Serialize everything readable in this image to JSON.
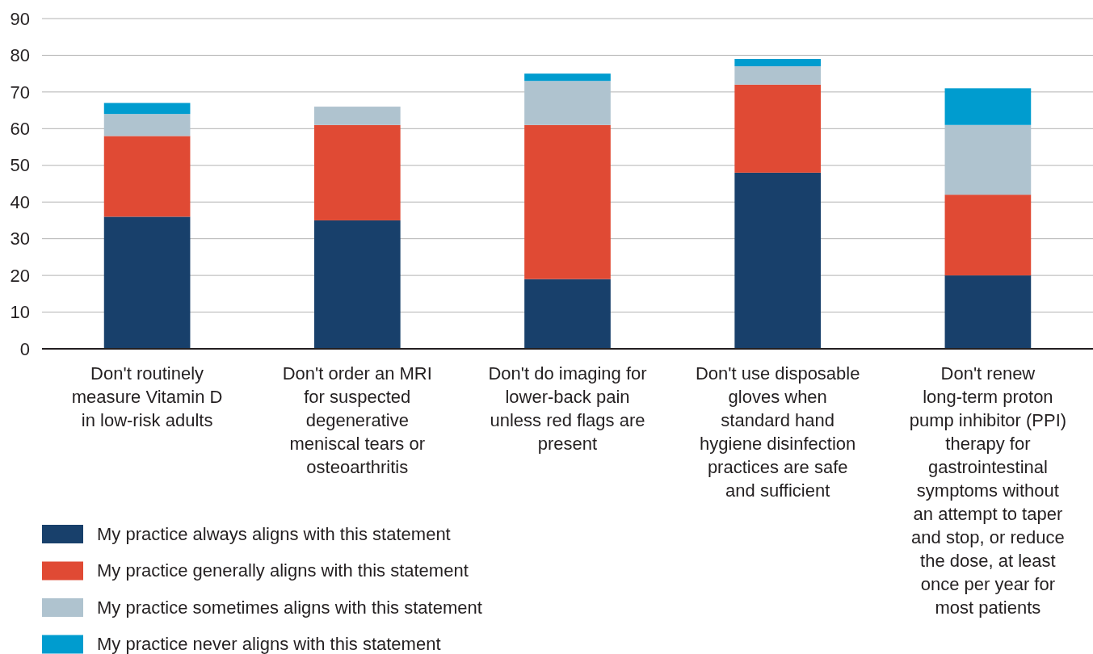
{
  "chart_data": {
    "type": "bar",
    "stacked": true,
    "categories": [
      "Don't routinely measure Vitamin D in low-risk adults",
      "Don't order an MRI for suspected degenerative meniscal tears or osteoarthritis",
      "Don't do imaging for lower-back pain unless red flags are present",
      "Don't use disposable gloves when standard hand hygiene disinfection practices are safe and sufficient",
      "Don't renew long-term proton pump inhibitor (PPI) therapy for gastrointestinal symptoms without an attempt to taper and stop, or reduce the dose, at least once per year for most patients"
    ],
    "series": [
      {
        "name": "My practice always aligns with this statement",
        "color": "#18406b",
        "values": [
          36,
          35,
          19,
          48,
          20
        ]
      },
      {
        "name": "My practice generally aligns with this statement",
        "color": "#e04a34",
        "values": [
          22,
          26,
          42,
          24,
          22
        ]
      },
      {
        "name": "My practice sometimes aligns with this statement",
        "color": "#afc3cf",
        "values": [
          6,
          5,
          12,
          5,
          19
        ]
      },
      {
        "name": "My practice never aligns with this statement",
        "color": "#009ccf",
        "values": [
          3,
          0,
          2,
          2,
          10
        ]
      }
    ],
    "ylim": [
      0,
      90
    ],
    "yticks": [
      0,
      10,
      20,
      30,
      40,
      50,
      60,
      70,
      80,
      90
    ],
    "grid": "y",
    "legend": "bottom left"
  }
}
